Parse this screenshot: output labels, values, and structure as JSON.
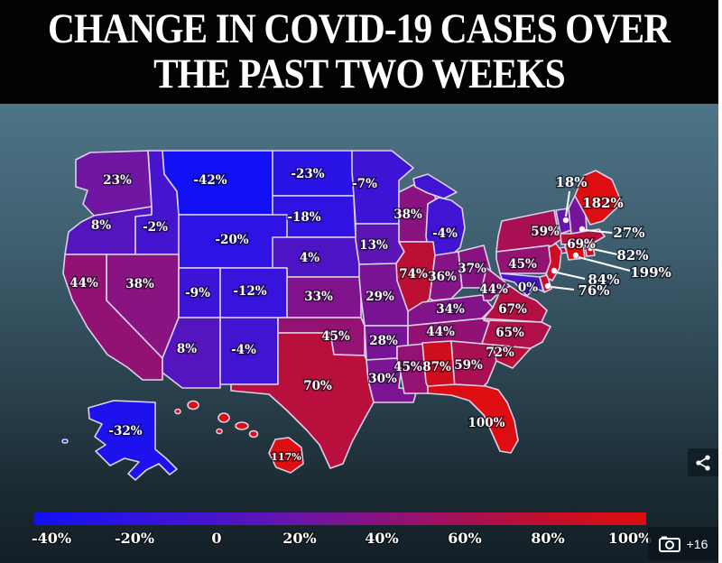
{
  "title": {
    "line1": "CHANGE IN COVID-19 CASES OVER",
    "line2": "THE PAST TWO WEEKS"
  },
  "colors": {
    "title_bg": "#030303",
    "map_bg_top": "#4e7487",
    "map_bg_bottom": "#141f27",
    "state_border": "#dcd2e8",
    "callout": "#ffffff",
    "page_edge": "#ffffff"
  },
  "color_scale": {
    "unit": "percent change in cases",
    "clamp_min": -40,
    "clamp_max": 100,
    "stops": [
      {
        "value": -40,
        "color": "#1210f4"
      },
      {
        "value": -20,
        "color": "#2d13e4"
      },
      {
        "value": 0,
        "color": "#4614cd"
      },
      {
        "value": 20,
        "color": "#6a16a8"
      },
      {
        "value": 40,
        "color": "#8c137d"
      },
      {
        "value": 60,
        "color": "#a91051"
      },
      {
        "value": 80,
        "color": "#c60e27"
      },
      {
        "value": 100,
        "color": "#de0d11"
      }
    ]
  },
  "states": {
    "WA": {
      "name": "Washington",
      "value": 23,
      "label": "23%"
    },
    "OR": {
      "name": "Oregon",
      "value": 8,
      "label": "8%"
    },
    "CA": {
      "name": "California",
      "value": 44,
      "label": "44%"
    },
    "NV": {
      "name": "Nevada",
      "value": 38,
      "label": "38%"
    },
    "ID": {
      "name": "Idaho",
      "value": -2,
      "label": "-2%"
    },
    "MT": {
      "name": "Montana",
      "value": -42,
      "label": "-42%"
    },
    "WY": {
      "name": "Wyoming",
      "value": -20,
      "label": "-20%"
    },
    "UT": {
      "name": "Utah",
      "value": -9,
      "label": "-9%"
    },
    "CO": {
      "name": "Colorado",
      "value": -12,
      "label": "-12%"
    },
    "AZ": {
      "name": "Arizona",
      "value": 8,
      "label": "8%"
    },
    "NM": {
      "name": "New Mexico",
      "value": -4,
      "label": "-4%"
    },
    "ND": {
      "name": "North Dakota",
      "value": -23,
      "label": "-23%"
    },
    "SD": {
      "name": "South Dakota",
      "value": -18,
      "label": "-18%"
    },
    "NE": {
      "name": "Nebraska",
      "value": 4,
      "label": "4%"
    },
    "KS": {
      "name": "Kansas",
      "value": 33,
      "label": "33%"
    },
    "OK": {
      "name": "Oklahoma",
      "value": 45,
      "label": "45%"
    },
    "TX": {
      "name": "Texas",
      "value": 70,
      "label": "70%"
    },
    "MN": {
      "name": "Minnesota",
      "value": -7,
      "label": "-7%"
    },
    "IA": {
      "name": "Iowa",
      "value": 13,
      "label": "13%"
    },
    "MO": {
      "name": "Missouri",
      "value": 29,
      "label": "29%"
    },
    "AR": {
      "name": "Arkansas",
      "value": 28,
      "label": "28%"
    },
    "LA": {
      "name": "Louisiana",
      "value": 30,
      "label": "30%"
    },
    "WI": {
      "name": "Wisconsin",
      "value": 38,
      "label": "38%"
    },
    "IL": {
      "name": "Illinois",
      "value": 74,
      "label": "74%"
    },
    "MI": {
      "name": "Michigan",
      "value": -4,
      "label": "-4%"
    },
    "IN": {
      "name": "Indiana",
      "value": 36,
      "label": "36%"
    },
    "OH": {
      "name": "Ohio",
      "value": 37,
      "label": "37%"
    },
    "KY": {
      "name": "Kentucky",
      "value": 34,
      "label": "34%"
    },
    "TN": {
      "name": "Tennessee",
      "value": 44,
      "label": "44%"
    },
    "MS": {
      "name": "Mississippi",
      "value": 45,
      "label": "45%"
    },
    "AL": {
      "name": "Alabama",
      "value": 87,
      "label": "87%"
    },
    "GA": {
      "name": "Georgia",
      "value": 59,
      "label": "59%"
    },
    "FL": {
      "name": "Florida",
      "value": 100,
      "label": "100%"
    },
    "SC": {
      "name": "South Carolina",
      "value": 72,
      "label": "72%"
    },
    "NC": {
      "name": "North Carolina",
      "value": 65,
      "label": "65%"
    },
    "VA": {
      "name": "Virginia",
      "value": 67,
      "label": "67%"
    },
    "WV": {
      "name": "West Virginia",
      "value": 44,
      "label": "44%"
    },
    "PA": {
      "name": "Pennsylvania",
      "value": 45,
      "label": "45%"
    },
    "NY": {
      "name": "New York",
      "value": 59,
      "label": "59%"
    },
    "NJ": {
      "name": "New Jersey",
      "value": 84,
      "label": "84%"
    },
    "DE": {
      "name": "Delaware",
      "value": 76,
      "label": "76%"
    },
    "MD": {
      "name": "Maryland",
      "value": 0,
      "label": "0%"
    },
    "VT": {
      "name": "Vermont",
      "value": 18,
      "label": "18%"
    },
    "NH": {
      "name": "New Hampshire",
      "value": 27,
      "label": "27%"
    },
    "MA": {
      "name": "Massachusetts",
      "value": 69,
      "label": "69%"
    },
    "RI": {
      "name": "Rhode Island",
      "value": 82,
      "label": "82%"
    },
    "CT": {
      "name": "Connecticut",
      "value": 199,
      "label": "199%"
    },
    "ME": {
      "name": "Maine",
      "value": 182,
      "label": "182%"
    },
    "AK": {
      "name": "Alaska",
      "value": -32,
      "label": "-32%"
    },
    "HI": {
      "name": "Hawaii",
      "value": 117,
      "label": "117%"
    }
  },
  "legend": {
    "ticks": [
      "-40%",
      "-20%",
      "0",
      "20%",
      "40%",
      "60%",
      "80%",
      "100%"
    ],
    "tick_values": [
      -40,
      -20,
      0,
      20,
      40,
      60,
      80,
      100
    ]
  },
  "gallery": {
    "count_label": "+16"
  },
  "icons": {
    "share": "share-icon",
    "camera": "camera-icon"
  }
}
